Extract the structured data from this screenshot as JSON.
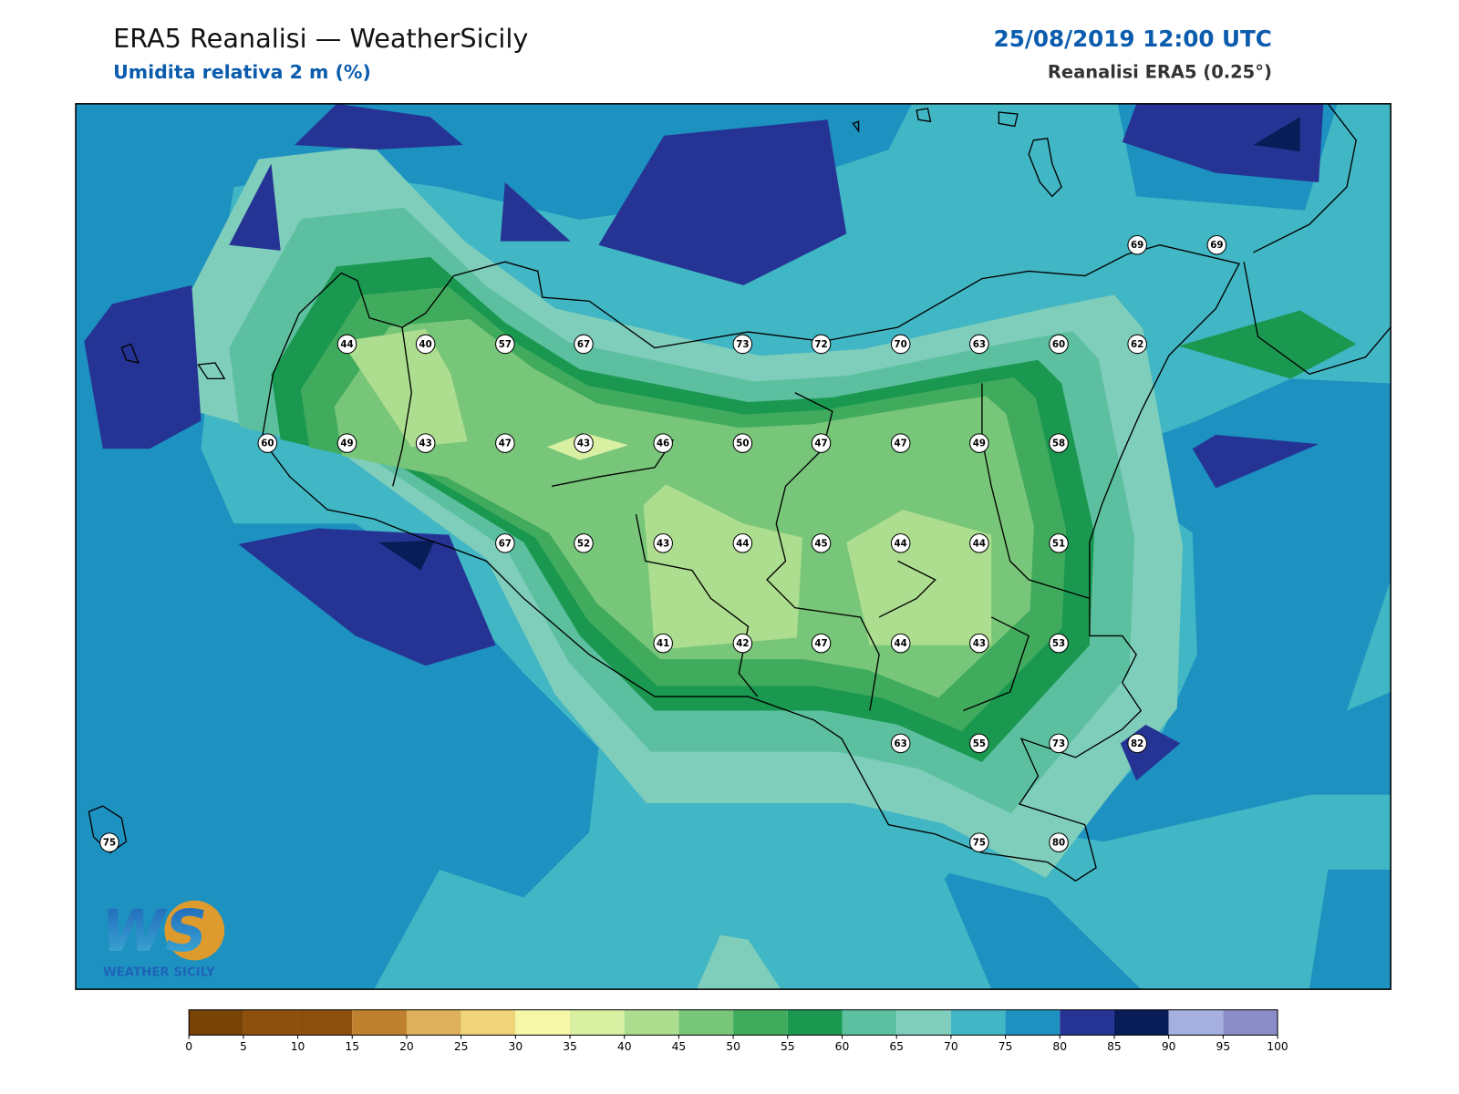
{
  "header": {
    "title": "ERA5 Reanalisi — WeatherSicily",
    "subtitle": "Umidita relativa 2 m (%)",
    "datetime": "25/08/2019 12:00 UTC",
    "source": "Reanalisi ERA5 (0.25°)"
  },
  "map": {
    "stations": [
      44,
      40,
      57,
      67,
      73,
      72,
      70,
      63,
      60,
      62,
      69,
      69,
      60,
      49,
      43,
      47,
      43,
      46,
      50,
      47,
      47,
      49,
      58,
      67,
      52,
      43,
      44,
      45,
      44,
      44,
      51,
      41,
      42,
      47,
      44,
      43,
      53,
      63,
      55,
      73,
      82,
      75,
      75,
      80
    ]
  },
  "colorbar": {
    "ticks": [
      0,
      5,
      10,
      15,
      20,
      25,
      30,
      35,
      40,
      45,
      50,
      55,
      60,
      65,
      70,
      75,
      80,
      85,
      90,
      95,
      100
    ],
    "colors": [
      "#7a4306",
      "#8c4f0c",
      "#8c4f0c",
      "#bf812d",
      "#dfb05b",
      "#f0d47a",
      "#f7f7a8",
      "#d9f0a3",
      "#addd8e",
      "#78c679",
      "#41ab5d",
      "#1a9850",
      "#5cc0a0",
      "#7fcdbb",
      "#41b6c4",
      "#1d91c0",
      "#253494",
      "#081d58",
      "#a6b0e0",
      "#8c8cc8"
    ]
  },
  "logo": {
    "mark": "WS",
    "text": "WEATHER SICILY"
  }
}
